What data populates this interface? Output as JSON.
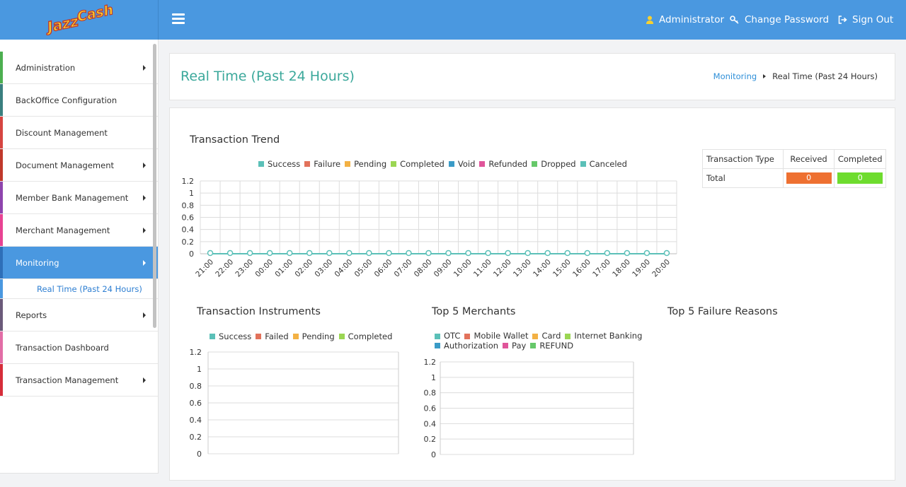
{
  "header": {
    "logo_text": "JazzCash",
    "user_label": "Administrator",
    "change_password_label": "Change Password",
    "sign_out_label": "Sign Out",
    "color": "#4a98e0"
  },
  "sidebar": {
    "items": [
      {
        "label": "Administration",
        "has_arrow": true,
        "color": "#4caf50"
      },
      {
        "label": "BackOffice Configuration",
        "has_arrow": false,
        "color": "#3a7f7f"
      },
      {
        "label": "Discount Management",
        "has_arrow": false,
        "color": "#d64541"
      },
      {
        "label": "Document Management",
        "has_arrow": true,
        "color": "#c0392b"
      },
      {
        "label": "Member Bank Management",
        "has_arrow": true,
        "color": "#8e44ad"
      },
      {
        "label": "Merchant Management",
        "has_arrow": true,
        "color": "#e84393"
      },
      {
        "label": "Monitoring",
        "has_arrow": true,
        "color": "#2e6fb8",
        "active": true
      },
      {
        "label": "Reports",
        "has_arrow": true,
        "color": "#6b5a7a"
      },
      {
        "label": "Transaction Dashboard",
        "has_arrow": false,
        "color": "#e26da6"
      },
      {
        "label": "Transaction Management",
        "has_arrow": true,
        "color": "#d62d3a"
      }
    ],
    "sub_item": "Real Time (Past 24 Hours)"
  },
  "page": {
    "title": "Real Time (Past 24 Hours)",
    "breadcrumb": {
      "parent": "Monitoring",
      "current": "Real Time (Past 24 Hours)"
    }
  },
  "table": {
    "headers": [
      "Transaction Type",
      "Received",
      "Completed"
    ],
    "rows": [
      {
        "type": "Total",
        "received": "0",
        "completed": "0"
      }
    ],
    "received_color": "#ee7031",
    "completed_color": "#6edc2e"
  },
  "chart_data": [
    {
      "type": "line",
      "title": "Transaction Trend",
      "series": [
        {
          "name": "Success",
          "color": "#5bc0b8",
          "values": [
            0,
            0,
            0,
            0,
            0,
            0,
            0,
            0,
            0,
            0,
            0,
            0,
            0,
            0,
            0,
            0,
            0,
            0,
            0,
            0,
            0,
            0,
            0,
            0
          ]
        },
        {
          "name": "Failure",
          "color": "#e2725b",
          "values": [
            0,
            0,
            0,
            0,
            0,
            0,
            0,
            0,
            0,
            0,
            0,
            0,
            0,
            0,
            0,
            0,
            0,
            0,
            0,
            0,
            0,
            0,
            0,
            0
          ]
        },
        {
          "name": "Pending",
          "color": "#f3b144",
          "values": [
            0,
            0,
            0,
            0,
            0,
            0,
            0,
            0,
            0,
            0,
            0,
            0,
            0,
            0,
            0,
            0,
            0,
            0,
            0,
            0,
            0,
            0,
            0,
            0
          ]
        },
        {
          "name": "Completed",
          "color": "#9bd653",
          "values": [
            0,
            0,
            0,
            0,
            0,
            0,
            0,
            0,
            0,
            0,
            0,
            0,
            0,
            0,
            0,
            0,
            0,
            0,
            0,
            0,
            0,
            0,
            0,
            0
          ]
        },
        {
          "name": "Void",
          "color": "#3a9bc7",
          "values": [
            0,
            0,
            0,
            0,
            0,
            0,
            0,
            0,
            0,
            0,
            0,
            0,
            0,
            0,
            0,
            0,
            0,
            0,
            0,
            0,
            0,
            0,
            0,
            0
          ]
        },
        {
          "name": "Refunded",
          "color": "#e0559a",
          "values": [
            0,
            0,
            0,
            0,
            0,
            0,
            0,
            0,
            0,
            0,
            0,
            0,
            0,
            0,
            0,
            0,
            0,
            0,
            0,
            0,
            0,
            0,
            0,
            0
          ]
        },
        {
          "name": "Dropped",
          "color": "#66c86a",
          "values": [
            0,
            0,
            0,
            0,
            0,
            0,
            0,
            0,
            0,
            0,
            0,
            0,
            0,
            0,
            0,
            0,
            0,
            0,
            0,
            0,
            0,
            0,
            0,
            0
          ]
        },
        {
          "name": "Canceled",
          "color": "#5bc0b8",
          "values": [
            0,
            0,
            0,
            0,
            0,
            0,
            0,
            0,
            0,
            0,
            0,
            0,
            0,
            0,
            0,
            0,
            0,
            0,
            0,
            0,
            0,
            0,
            0,
            0
          ]
        }
      ],
      "categories": [
        "21:00",
        "22:00",
        "23:00",
        "00:00",
        "01:00",
        "02:00",
        "03:00",
        "04:00",
        "05:00",
        "06:00",
        "07:00",
        "08:00",
        "09:00",
        "10:00",
        "11:00",
        "12:00",
        "13:00",
        "14:00",
        "15:00",
        "16:00",
        "17:00",
        "18:00",
        "19:00",
        "20:00"
      ],
      "yticks": [
        "0",
        "0.2",
        "0.4",
        "0.6",
        "0.8",
        "1",
        "1.2"
      ],
      "ylim": [
        0,
        1.2
      ],
      "grid": true,
      "legend": "top"
    },
    {
      "type": "bar",
      "title": "Transaction Instruments",
      "series": [
        {
          "name": "Success",
          "color": "#5bc0b8",
          "values": []
        },
        {
          "name": "Failed",
          "color": "#e2725b",
          "values": []
        },
        {
          "name": "Pending",
          "color": "#f3b144",
          "values": []
        },
        {
          "name": "Completed",
          "color": "#9bd653",
          "values": []
        }
      ],
      "yticks": [
        "0",
        "0.2",
        "0.4",
        "0.6",
        "0.8",
        "1",
        "1.2"
      ],
      "ylim": [
        0,
        1.2
      ],
      "legend": "top"
    },
    {
      "type": "bar",
      "title": "Top 5 Merchants",
      "series": [
        {
          "name": "OTC",
          "color": "#5bc0b8",
          "values": []
        },
        {
          "name": "Mobile Wallet",
          "color": "#e2725b",
          "values": []
        },
        {
          "name": "Card",
          "color": "#f3b144",
          "values": []
        },
        {
          "name": "Internet Banking",
          "color": "#9bd653",
          "values": []
        },
        {
          "name": "Authorization",
          "color": "#3a9bc7",
          "values": []
        },
        {
          "name": "Pay",
          "color": "#e0559a",
          "values": []
        },
        {
          "name": "REFUND",
          "color": "#66c86a",
          "values": []
        }
      ],
      "yticks": [
        "0",
        "0.2",
        "0.4",
        "0.6",
        "0.8",
        "1",
        "1.2"
      ],
      "ylim": [
        0,
        1.2
      ],
      "legend": "top"
    },
    {
      "type": "bar",
      "title": "Top 5 Failure Reasons",
      "series": []
    }
  ]
}
